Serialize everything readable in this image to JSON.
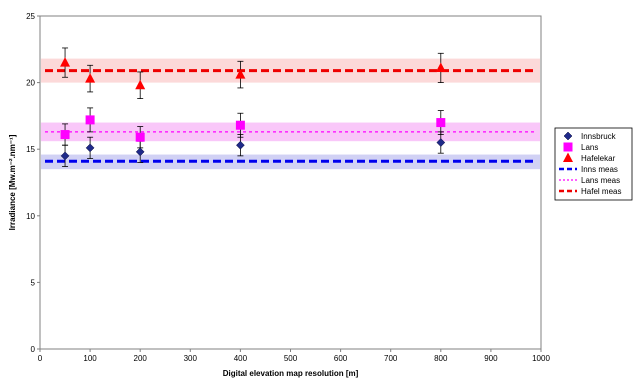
{
  "chart_data": {
    "type": "scatter",
    "title": "",
    "xlabel": "Digital elevation map resolution [m]",
    "ylabel": "Irradiance [Mw.m⁻².nm⁻¹]",
    "xlim": [
      0,
      1000
    ],
    "ylim": [
      0,
      25
    ],
    "x_ticks": [
      "0",
      "100",
      "200",
      "300",
      "400",
      "500",
      "600",
      "700",
      "800",
      "900",
      "1000"
    ],
    "y_ticks": [
      "0",
      "5",
      "10",
      "15",
      "20",
      "25"
    ],
    "grid": false,
    "legend_position": "right",
    "series": [
      {
        "name": "Innsbruck",
        "kind": "points",
        "marker": "diamond",
        "color": "#1f2a8a",
        "x": [
          50,
          100,
          200,
          400,
          800
        ],
        "y": [
          14.5,
          15.1,
          14.8,
          15.3,
          15.5
        ],
        "err": [
          0.8,
          0.8,
          0.8,
          0.8,
          0.8
        ]
      },
      {
        "name": "Lans",
        "kind": "points",
        "marker": "square",
        "color": "#ff00ff",
        "x": [
          50,
          100,
          200,
          400,
          800
        ],
        "y": [
          16.1,
          17.2,
          15.9,
          16.8,
          17.0
        ],
        "err": [
          0.8,
          0.9,
          0.8,
          0.9,
          0.9
        ]
      },
      {
        "name": "Hafelekar",
        "kind": "points",
        "marker": "triangle",
        "color": "#ff0000",
        "x": [
          50,
          100,
          200,
          400,
          800
        ],
        "y": [
          21.5,
          20.3,
          19.8,
          20.6,
          21.1
        ],
        "err": [
          1.1,
          1.0,
          1.0,
          1.0,
          1.1
        ]
      },
      {
        "name": "Inns meas",
        "kind": "hline",
        "style": "long-dash",
        "color": "#0000ee",
        "y": 14.1,
        "band": [
          13.5,
          14.6
        ],
        "band_color": "#c9c9f2"
      },
      {
        "name": "Lans meas",
        "kind": "hline",
        "style": "short-dash",
        "color": "#ff00ff",
        "y": 16.3,
        "band": [
          15.6,
          17.0
        ],
        "band_color": "#f8bdf8"
      },
      {
        "name": "Hafel meas",
        "kind": "hline",
        "style": "long-dash",
        "color": "#ee0000",
        "y": 20.9,
        "band": [
          20.0,
          21.8
        ],
        "band_color": "#fcd2d2"
      }
    ]
  }
}
